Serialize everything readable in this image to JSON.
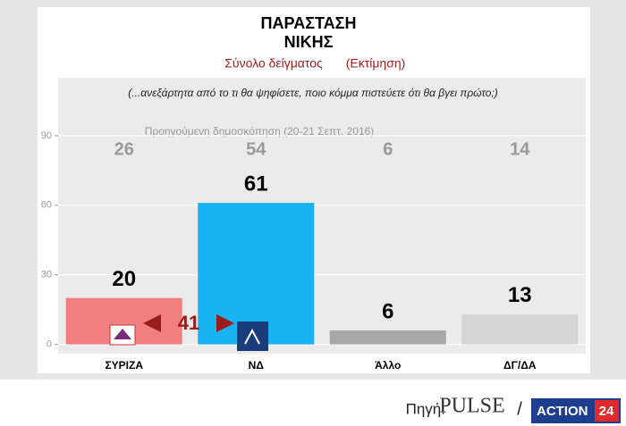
{
  "chart_data": {
    "type": "bar",
    "title_lines": [
      "ΠΑΡΑΣΤΑΣΗ",
      "ΝΙΚΗΣ"
    ],
    "subtitle": "Σύνολο δείγματος",
    "subtitle_note": "(Εκτίμηση)",
    "question": "(...ανεξάρτητα από το τι θα ψηφίσετε, ποιο κόμμα πιστεύετε ότι θα βγει πρώτο;)",
    "previous_label": "Προηγούμενη δημοσκόπηση (20-21 Σεπτ. 2016)",
    "categories": [
      "ΣΥΡΙΖΑ",
      "ΝΔ",
      "Άλλο",
      "ΔΓ/ΔΑ"
    ],
    "values": [
      20,
      61,
      6,
      13
    ],
    "colors": [
      "#f28080",
      "#19b3f2",
      "#a8a8a8",
      "#d4d4d4"
    ],
    "previous_values": [
      26,
      54,
      6,
      14
    ],
    "gap": 41,
    "ylim": [
      -4,
      115
    ],
    "yticks": [
      0,
      30,
      60,
      90
    ],
    "grid": true
  },
  "footer": {
    "source_label": "Πηγή:",
    "pulse": "PULSE",
    "separator": "/",
    "action": "ACTION",
    "action_number": "24"
  }
}
